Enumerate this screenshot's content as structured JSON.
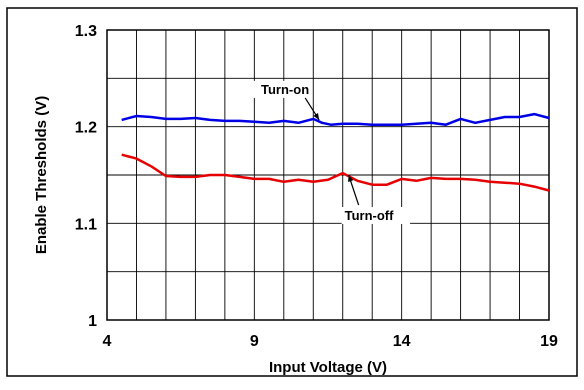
{
  "chart_data": {
    "type": "line",
    "title": "",
    "xlabel": "Input Voltage (V)",
    "ylabel": "Enable Thresholds (V)",
    "xlim": [
      4,
      19
    ],
    "ylim": [
      1.0,
      1.3
    ],
    "x_ticks": [
      4,
      9,
      14,
      19
    ],
    "x_tick_labels": [
      "4",
      "9",
      "14",
      "19"
    ],
    "y_ticks": [
      1.0,
      1.1,
      1.2,
      1.3
    ],
    "y_tick_labels": [
      "1",
      "1.1",
      "1.2",
      "1.3"
    ],
    "grid": true,
    "legend": "none",
    "series": [
      {
        "name": "Turn-on",
        "color": "#0000e6",
        "x": [
          4.5,
          5.0,
          5.5,
          6.0,
          6.5,
          7.0,
          7.5,
          8.0,
          8.5,
          9.0,
          9.5,
          10.0,
          10.5,
          11.0,
          11.3,
          11.6,
          12.0,
          12.5,
          13.0,
          13.5,
          14.0,
          14.5,
          15.0,
          15.5,
          16.0,
          16.5,
          17.0,
          17.5,
          18.0,
          18.5,
          19.0
        ],
        "y": [
          1.207,
          1.211,
          1.21,
          1.208,
          1.208,
          1.209,
          1.207,
          1.206,
          1.206,
          1.205,
          1.204,
          1.206,
          1.204,
          1.208,
          1.204,
          1.202,
          1.203,
          1.203,
          1.202,
          1.202,
          1.202,
          1.203,
          1.204,
          1.202,
          1.208,
          1.204,
          1.207,
          1.21,
          1.21,
          1.213,
          1.209
        ]
      },
      {
        "name": "Turn-off",
        "color": "#e60000",
        "x": [
          4.5,
          5.0,
          5.5,
          6.0,
          6.5,
          7.0,
          7.5,
          8.0,
          8.5,
          9.0,
          9.5,
          10.0,
          10.5,
          11.0,
          11.5,
          12.0,
          12.5,
          13.0,
          13.5,
          14.0,
          14.5,
          15.0,
          15.5,
          16.0,
          16.5,
          17.0,
          17.5,
          18.0,
          18.5,
          19.0
        ],
        "y": [
          1.171,
          1.167,
          1.159,
          1.149,
          1.148,
          1.148,
          1.15,
          1.15,
          1.148,
          1.146,
          1.146,
          1.143,
          1.145,
          1.143,
          1.145,
          1.152,
          1.144,
          1.14,
          1.14,
          1.146,
          1.144,
          1.147,
          1.146,
          1.146,
          1.145,
          1.143,
          1.142,
          1.141,
          1.138,
          1.134
        ]
      }
    ],
    "annotations": [
      {
        "text": "Turn-on",
        "series": 0,
        "x": 11.2,
        "y": 1.207
      },
      {
        "text": "Turn-off",
        "series": 1,
        "x": 12.2,
        "y": 1.15
      }
    ]
  }
}
